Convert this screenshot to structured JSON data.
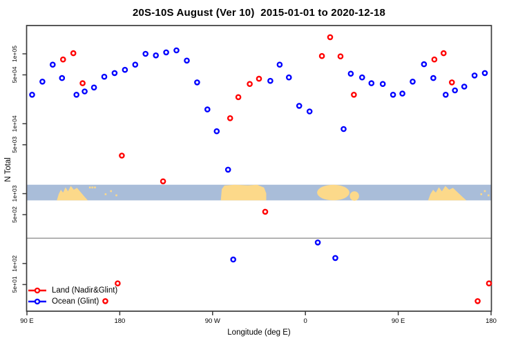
{
  "figure": {
    "title": "20S-10S August (Ver 10)  2015-01-01 to 2020-12-18",
    "xlabel": "Longitude (deg E)",
    "ylabel": "N Total"
  },
  "legend": {
    "items": [
      {
        "label": "Land (Nadir&Glint)",
        "color": "#ff0000"
      },
      {
        "label": "Ocean (Glint)",
        "color": "#0000ff"
      }
    ]
  },
  "colors": {
    "land_series": "#ff0000",
    "ocean_series": "#0000ff",
    "map_ocean": "#a9bdd9",
    "map_land": "#fcd98a",
    "axis": "#3a3a3a",
    "reference_line": "#9b9b9b",
    "text": "#000000"
  },
  "chart_data": {
    "type": "scatter",
    "title": "20S-10S August (Ver 10)  2015-01-01 to 2020-12-18",
    "xlabel": "Longitude (deg E)",
    "ylabel": "N Total",
    "x_scale": "longitude-deg-east-wrapped",
    "y_scale": "log10",
    "xlim": [
      90,
      540
    ],
    "ylim": [
      20,
      250000
    ],
    "grid": false,
    "legend_position": "bottom-left",
    "x_ticks": [
      {
        "lon": 90,
        "label": "90 E"
      },
      {
        "lon": 180,
        "label": "180"
      },
      {
        "lon": 270,
        "label": "90 W"
      },
      {
        "lon": 360,
        "label": "0"
      },
      {
        "lon": 450,
        "label": "90 E"
      },
      {
        "lon": 540,
        "label": "180"
      }
    ],
    "y_ticks": [
      {
        "value": 100000,
        "label": "1e+05"
      },
      {
        "value": 50000,
        "label": "5e+04"
      },
      {
        "value": 10000,
        "label": "1e+04"
      },
      {
        "value": 5000,
        "label": "5e+03"
      },
      {
        "value": 1000,
        "label": "1e+03"
      },
      {
        "value": 500,
        "label": "5e+02"
      },
      {
        "value": 100,
        "label": "1e+02"
      },
      {
        "value": 50,
        "label": "5e+01"
      }
    ],
    "reference_line_y": 230,
    "map_strip": {
      "description": "world land/ocean strip for 20S-10S latitude band overlaid on plot",
      "value_top": 1340,
      "value_bottom": 800,
      "segments": [
        {
          "name": "australia",
          "from_lon": 119,
          "to_lon": 149,
          "shape": "bump"
        },
        {
          "name": "new-guinea",
          "from_lon": 150,
          "to_lon": 157,
          "shape": "specks-top"
        },
        {
          "name": "melanesia",
          "from_lon": 164,
          "to_lon": 179,
          "shape": "specks"
        },
        {
          "name": "south-america",
          "from_lon": 278,
          "to_lon": 322,
          "shape": "full"
        },
        {
          "name": "africa",
          "from_lon": 372,
          "to_lon": 402,
          "shape": "blob"
        },
        {
          "name": "madagascar",
          "from_lon": 403,
          "to_lon": 412,
          "shape": "blob-bottom"
        },
        {
          "name": "australia-2",
          "from_lon": 479,
          "to_lon": 516,
          "shape": "bump"
        },
        {
          "name": "melanesia-2",
          "from_lon": 529,
          "to_lon": 539,
          "shape": "specks"
        }
      ]
    },
    "series": [
      {
        "name": "Land (Nadir&Glint)",
        "color": "#ff0000",
        "marker": "open-circle",
        "points": [
          [
            125,
            83000
          ],
          [
            135,
            102000
          ],
          [
            144,
            38000
          ],
          [
            166,
            29
          ],
          [
            178,
            52
          ],
          [
            182,
            3500
          ],
          [
            222,
            1500
          ],
          [
            287,
            12000
          ],
          [
            295,
            24000
          ],
          [
            306,
            37000
          ],
          [
            315,
            44000
          ],
          [
            321,
            550
          ],
          [
            376,
            93000
          ],
          [
            384,
            173000
          ],
          [
            394,
            92000
          ],
          [
            407,
            26000
          ],
          [
            485,
            83000
          ],
          [
            494,
            102000
          ],
          [
            502,
            39000
          ],
          [
            527,
            29
          ],
          [
            538,
            52
          ]
        ]
      },
      {
        "name": "Ocean (Glint)",
        "color": "#0000ff",
        "marker": "open-circle",
        "points": [
          [
            95,
            26000
          ],
          [
            105,
            40000
          ],
          [
            115,
            70000
          ],
          [
            124,
            45000
          ],
          [
            138,
            26000
          ],
          [
            146,
            29000
          ],
          [
            155,
            33000
          ],
          [
            165,
            47000
          ],
          [
            175,
            53000
          ],
          [
            185,
            59000
          ],
          [
            195,
            70000
          ],
          [
            205,
            100000
          ],
          [
            215,
            95000
          ],
          [
            225,
            105000
          ],
          [
            235,
            112000
          ],
          [
            245,
            80000
          ],
          [
            255,
            39000
          ],
          [
            265,
            16000
          ],
          [
            274,
            7800
          ],
          [
            285,
            2200
          ],
          [
            290,
            114
          ],
          [
            326,
            41000
          ],
          [
            335,
            70000
          ],
          [
            344,
            46000
          ],
          [
            354,
            18000
          ],
          [
            364,
            15000
          ],
          [
            372,
            200
          ],
          [
            389,
            120
          ],
          [
            397,
            8400
          ],
          [
            404,
            52000
          ],
          [
            415,
            46000
          ],
          [
            424,
            38000
          ],
          [
            435,
            37000
          ],
          [
            445,
            26000
          ],
          [
            454,
            27000
          ],
          [
            464,
            40000
          ],
          [
            475,
            71000
          ],
          [
            484,
            45000
          ],
          [
            496,
            26000
          ],
          [
            505,
            30000
          ],
          [
            514,
            34000
          ],
          [
            524,
            49000
          ],
          [
            534,
            53000
          ]
        ]
      }
    ]
  }
}
